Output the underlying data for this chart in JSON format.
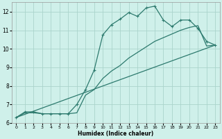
{
  "xlabel": "Humidex (Indice chaleur)",
  "bg_color": "#cff0ea",
  "grid_color": "#aad4cc",
  "line_color": "#2d7a6e",
  "xlim": [
    -0.5,
    23.5
  ],
  "ylim": [
    6,
    12.5
  ],
  "xticks": [
    0,
    1,
    2,
    3,
    4,
    5,
    6,
    7,
    8,
    9,
    10,
    11,
    12,
    13,
    14,
    15,
    16,
    17,
    18,
    19,
    20,
    21,
    22,
    23
  ],
  "yticks": [
    6,
    7,
    8,
    9,
    10,
    11,
    12
  ],
  "line1_x": [
    0,
    1,
    2,
    3,
    4,
    5,
    6,
    7,
    8,
    9,
    10,
    11,
    12,
    13,
    14,
    15,
    16,
    17,
    18,
    19,
    20,
    21,
    22,
    23
  ],
  "line1_y": [
    6.3,
    6.6,
    6.6,
    6.5,
    6.5,
    6.5,
    6.5,
    7.0,
    7.8,
    8.85,
    10.75,
    11.3,
    11.6,
    11.95,
    11.75,
    12.2,
    12.3,
    11.55,
    11.2,
    11.55,
    11.55,
    11.1,
    10.4,
    10.2
  ],
  "line2_x": [
    0,
    23
  ],
  "line2_y": [
    6.3,
    10.2
  ],
  "line3_x": [
    0,
    1,
    2,
    3,
    4,
    5,
    6,
    7,
    8,
    9,
    10,
    11,
    12,
    13,
    14,
    15,
    16,
    17,
    18,
    19,
    20,
    21,
    22,
    23
  ],
  "line3_y": [
    6.3,
    6.55,
    6.55,
    6.5,
    6.5,
    6.5,
    6.5,
    6.55,
    7.5,
    7.8,
    8.4,
    8.8,
    9.1,
    9.5,
    9.8,
    10.1,
    10.4,
    10.6,
    10.8,
    11.0,
    11.15,
    11.25,
    10.15,
    10.2
  ]
}
